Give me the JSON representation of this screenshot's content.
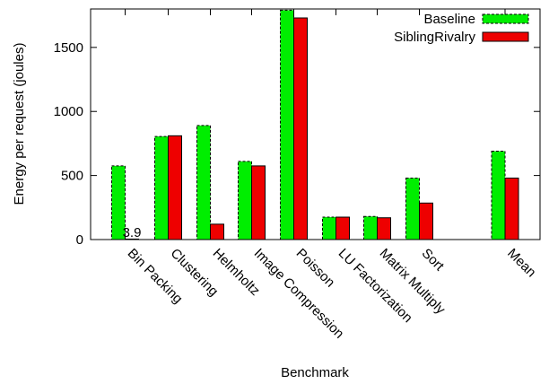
{
  "chart_data": {
    "type": "bar",
    "xlabel": "Benchmark",
    "ylabel": "Energy per request (joules)",
    "ylim": [
      0,
      1800
    ],
    "yticks": [
      0,
      500,
      1000,
      1500
    ],
    "grid": false,
    "legend_position": "top-right",
    "categories": [
      "Bin Packing",
      "Clustering",
      "Helmholtz",
      "Image Compression",
      "Poisson",
      "LU Factorization",
      "Matrix Multiply",
      "Sort",
      "Mean"
    ],
    "series": [
      {
        "name": "Baseline",
        "values": [
          575,
          805,
          890,
          610,
          1790,
          175,
          180,
          480,
          690
        ],
        "color": "#00ee00",
        "style": "dashed-border"
      },
      {
        "name": "SiblingRivalry",
        "values": [
          3.9,
          810,
          120,
          575,
          1730,
          175,
          170,
          285,
          480
        ],
        "color": "#ee0000",
        "style": "solid-border"
      }
    ],
    "annotations": [
      {
        "text": "3.9",
        "category": "Bin Packing",
        "series": "SiblingRivalry"
      }
    ]
  }
}
